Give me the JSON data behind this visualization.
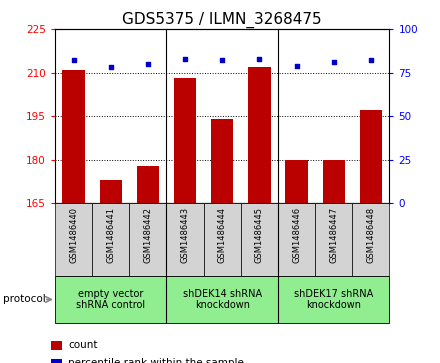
{
  "title": "GDS5375 / ILMN_3268475",
  "samples": [
    "GSM1486440",
    "GSM1486441",
    "GSM1486442",
    "GSM1486443",
    "GSM1486444",
    "GSM1486445",
    "GSM1486446",
    "GSM1486447",
    "GSM1486448"
  ],
  "counts": [
    211,
    173,
    178,
    208,
    194,
    212,
    180,
    180,
    197
  ],
  "percentile_ranks": [
    82,
    78,
    80,
    83,
    82,
    83,
    79,
    81,
    82
  ],
  "ylim_left": [
    165,
    225
  ],
  "ylim_right": [
    0,
    100
  ],
  "yticks_left": [
    165,
    180,
    195,
    210,
    225
  ],
  "yticks_right": [
    0,
    25,
    50,
    75,
    100
  ],
  "groups": [
    {
      "label": "empty vector\nshRNA control",
      "start": 0,
      "end": 3,
      "color": "#90EE90"
    },
    {
      "label": "shDEK14 shRNA\nknockdown",
      "start": 3,
      "end": 6,
      "color": "#90EE90"
    },
    {
      "label": "shDEK17 shRNA\nknockdown",
      "start": 6,
      "end": 9,
      "color": "#90EE90"
    }
  ],
  "bar_color": "#BB0000",
  "scatter_color": "#0000CC",
  "tick_bg_color": "#D3D3D3",
  "protocol_label": "protocol",
  "legend_count": "count",
  "legend_percentile": "percentile rank within the sample",
  "title_fontsize": 11,
  "tick_fontsize": 7.5,
  "sample_fontsize": 6,
  "group_fontsize": 7
}
